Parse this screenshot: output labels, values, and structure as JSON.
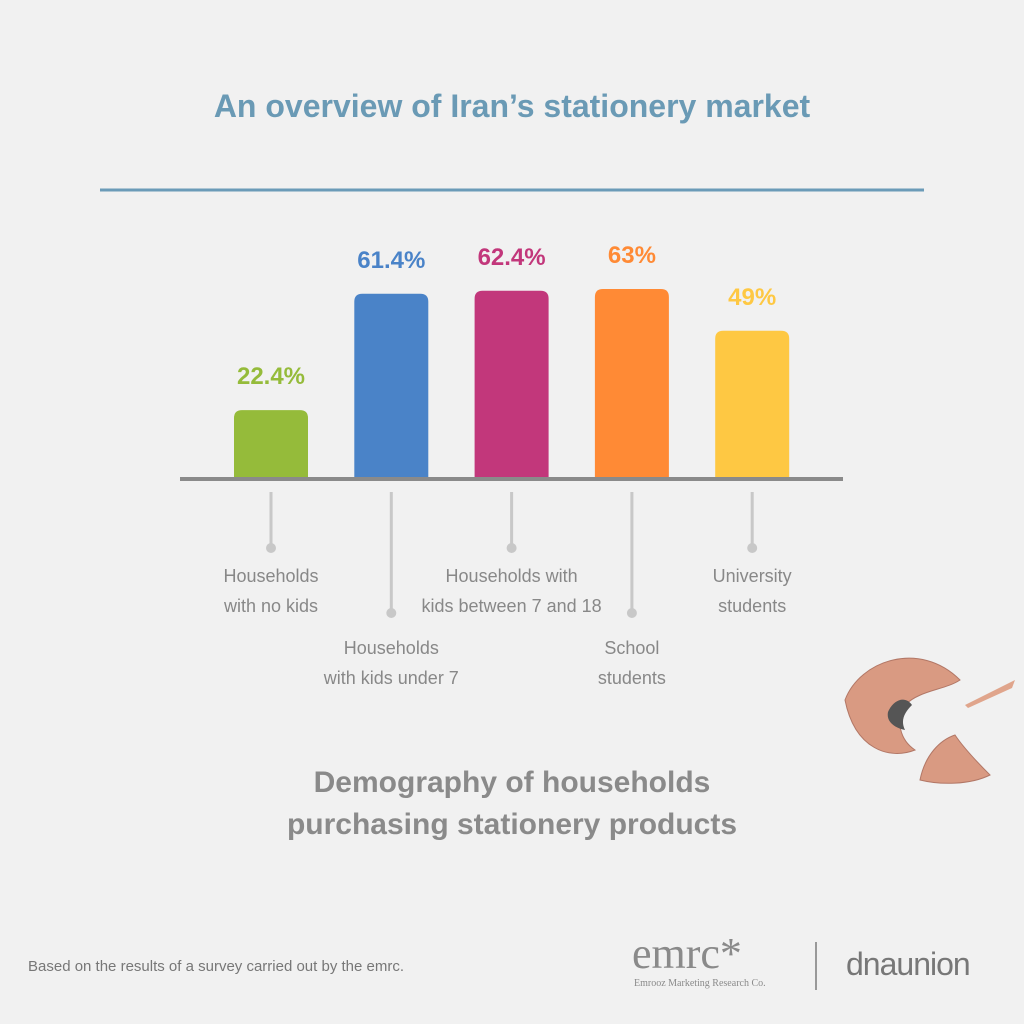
{
  "chart_data": {
    "type": "bar",
    "title": "An overview of Iran’s stationery market",
    "subtitle": "Demography of households\npurchasing stationery products",
    "categories": [
      "Households\nwith no kids",
      "Households\nwith kids under 7",
      "Households with\nkids between 7 and 18",
      "School\nstudents",
      "University\nstudents"
    ],
    "values": [
      22.4,
      61.4,
      62.4,
      63,
      49
    ],
    "value_labels": [
      "22.4%",
      "61.4%",
      "62.4%",
      "63%",
      "49%"
    ],
    "colors": [
      "#95bb3a",
      "#4a83c8",
      "#c2377b",
      "#ff8a35",
      "#fec843"
    ]
  },
  "footer": {
    "note": "Based on the results of a survey carried out by the emrc.",
    "logo": "emrc*",
    "logo_caption": "Emrooz Marketing Research Co.",
    "partner": "dnaunion"
  }
}
